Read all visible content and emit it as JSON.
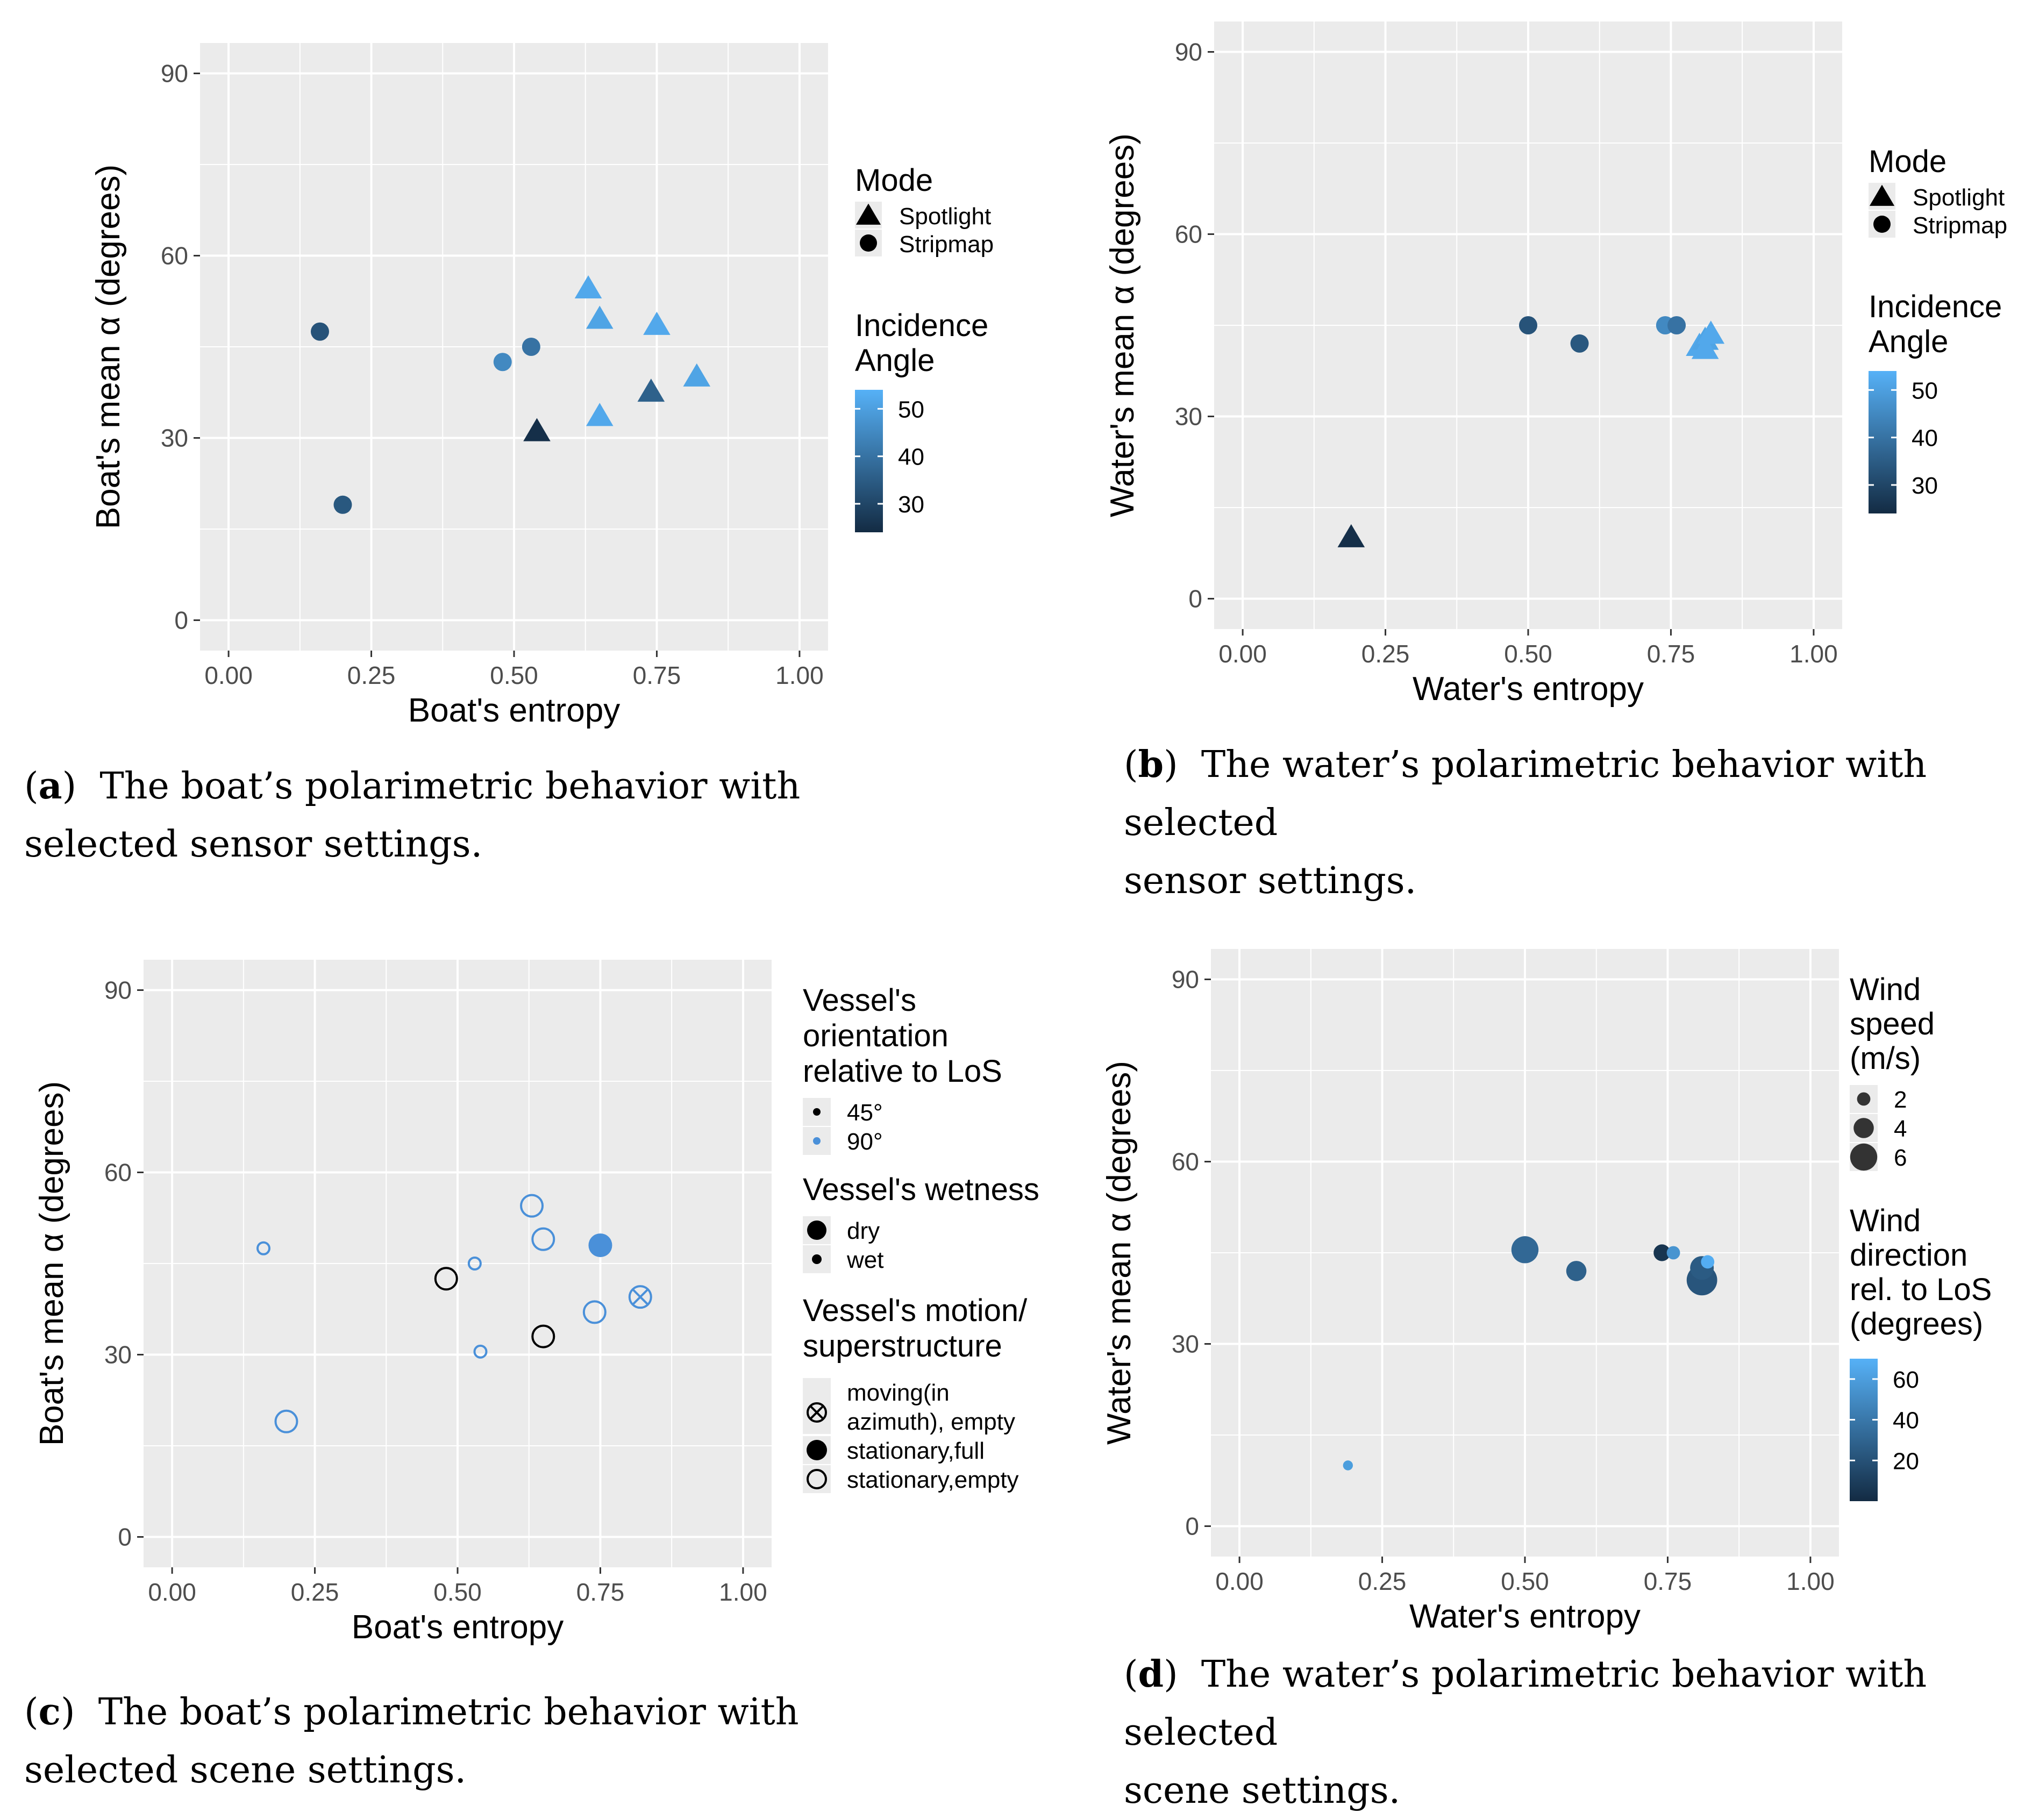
{
  "figure": {
    "captions": [
      {
        "letter": "a",
        "line1": "The boat’s polarimetric behavior with",
        "line2": "selected sensor settings."
      },
      {
        "letter": "b",
        "line1": "The water’s polarimetric behavior with selected",
        "line2": "sensor settings."
      },
      {
        "letter": "c",
        "line1": "The boat’s polarimetric behavior with",
        "line2": "selected scene settings."
      },
      {
        "letter": "d",
        "line1": "The water’s polarimetric behavior with selected",
        "line2": "scene settings."
      }
    ]
  },
  "colors": {
    "panel_bg": "#EBEBEB",
    "grid": "#FFFFFF",
    "grad_low": "#132B43",
    "grad_high": "#56B1F7",
    "black": "#000000",
    "blue": "#4A90D9"
  },
  "chart_data": [
    {
      "id": "a",
      "type": "scatter",
      "xlabel": "Boat's entropy",
      "ylabel": "Boat's mean α (degrees)",
      "xlim": [
        -0.05,
        1.05
      ],
      "ylim": [
        -5,
        95
      ],
      "xticks": [
        "0.00",
        "0.25",
        "0.50",
        "0.75",
        "1.00"
      ],
      "yticks": [
        "0",
        "30",
        "60",
        "90"
      ],
      "xtick_values": [
        0,
        0.25,
        0.5,
        0.75,
        1
      ],
      "ytick_values": [
        0,
        30,
        60,
        90
      ],
      "color_by": "incidence",
      "points": [
        {
          "x": 0.16,
          "y": 47.5,
          "shape": "circle",
          "incidence": 33
        },
        {
          "x": 0.2,
          "y": 19.0,
          "shape": "circle",
          "incidence": 34
        },
        {
          "x": 0.48,
          "y": 42.5,
          "shape": "circle",
          "incidence": 45
        },
        {
          "x": 0.53,
          "y": 45.0,
          "shape": "circle",
          "incidence": 40
        },
        {
          "x": 0.54,
          "y": 31.0,
          "shape": "triangle",
          "incidence": 25
        },
        {
          "x": 0.63,
          "y": 54.5,
          "shape": "triangle",
          "incidence": 52
        },
        {
          "x": 0.65,
          "y": 49.5,
          "shape": "triangle",
          "incidence": 51
        },
        {
          "x": 0.65,
          "y": 33.5,
          "shape": "triangle",
          "incidence": 52
        },
        {
          "x": 0.74,
          "y": 37.5,
          "shape": "triangle",
          "incidence": 36
        },
        {
          "x": 0.75,
          "y": 48.5,
          "shape": "triangle",
          "incidence": 52
        },
        {
          "x": 0.82,
          "y": 40.0,
          "shape": "triangle",
          "incidence": 51
        }
      ],
      "legend": {
        "mode_title": "Mode",
        "mode_items": [
          "Spotlight",
          "Stripmap"
        ],
        "color_title_1": "Incidence",
        "color_title_2": "Angle",
        "color_ticks": [
          "50",
          "40",
          "30"
        ],
        "color_tick_values": [
          50,
          40,
          30
        ],
        "color_range": [
          24,
          54
        ]
      }
    },
    {
      "id": "b",
      "type": "scatter",
      "xlabel": "Water's entropy",
      "ylabel": "Water's mean α (degrees)",
      "xlim": [
        -0.05,
        1.05
      ],
      "ylim": [
        -5,
        95
      ],
      "xticks": [
        "0.00",
        "0.25",
        "0.50",
        "0.75",
        "1.00"
      ],
      "yticks": [
        "0",
        "30",
        "60",
        "90"
      ],
      "xtick_values": [
        0,
        0.25,
        0.5,
        0.75,
        1
      ],
      "ytick_values": [
        0,
        30,
        60,
        90
      ],
      "color_by": "incidence",
      "points": [
        {
          "x": 0.19,
          "y": 10.0,
          "shape": "triangle",
          "incidence": 25
        },
        {
          "x": 0.5,
          "y": 45.0,
          "shape": "circle",
          "incidence": 33
        },
        {
          "x": 0.59,
          "y": 42.0,
          "shape": "circle",
          "incidence": 34
        },
        {
          "x": 0.74,
          "y": 45.0,
          "shape": "circle",
          "incidence": 45
        },
        {
          "x": 0.76,
          "y": 45.0,
          "shape": "circle",
          "incidence": 40
        },
        {
          "x": 0.8,
          "y": 41.5,
          "shape": "triangle",
          "incidence": 52
        },
        {
          "x": 0.81,
          "y": 42.5,
          "shape": "triangle",
          "incidence": 51
        },
        {
          "x": 0.81,
          "y": 41.0,
          "shape": "triangle",
          "incidence": 52
        },
        {
          "x": 0.82,
          "y": 43.5,
          "shape": "triangle",
          "incidence": 52
        }
      ],
      "legend": {
        "mode_title": "Mode",
        "mode_items": [
          "Spotlight",
          "Stripmap"
        ],
        "color_title_1": "Incidence",
        "color_title_2": "Angle",
        "color_ticks": [
          "50",
          "40",
          "30"
        ],
        "color_tick_values": [
          50,
          40,
          30
        ],
        "color_range": [
          24,
          54
        ]
      }
    },
    {
      "id": "c",
      "type": "scatter",
      "xlabel": "Boat's entropy",
      "ylabel": "Boat's mean α (degrees)",
      "xlim": [
        -0.05,
        1.05
      ],
      "ylim": [
        -5,
        95
      ],
      "xticks": [
        "0.00",
        "0.25",
        "0.50",
        "0.75",
        "1.00"
      ],
      "yticks": [
        "0",
        "30",
        "60",
        "90"
      ],
      "xtick_values": [
        0,
        0.25,
        0.5,
        0.75,
        1
      ],
      "ytick_values": [
        0,
        30,
        60,
        90
      ],
      "points": [
        {
          "x": 0.16,
          "y": 47.5,
          "orientation": "90°",
          "wetness": "wet",
          "motion": "stationary,empty"
        },
        {
          "x": 0.2,
          "y": 19.0,
          "orientation": "90°",
          "wetness": "dry",
          "motion": "stationary,empty"
        },
        {
          "x": 0.48,
          "y": 42.5,
          "orientation": "45°",
          "wetness": "dry",
          "motion": "stationary,empty"
        },
        {
          "x": 0.53,
          "y": 45.0,
          "orientation": "90°",
          "wetness": "wet",
          "motion": "stationary,empty"
        },
        {
          "x": 0.54,
          "y": 30.5,
          "orientation": "90°",
          "wetness": "wet",
          "motion": "stationary,empty"
        },
        {
          "x": 0.63,
          "y": 54.5,
          "orientation": "90°",
          "wetness": "dry",
          "motion": "stationary,empty"
        },
        {
          "x": 0.65,
          "y": 49.0,
          "orientation": "90°",
          "wetness": "dry",
          "motion": "stationary,empty"
        },
        {
          "x": 0.65,
          "y": 33.0,
          "orientation": "45°",
          "wetness": "dry",
          "motion": "stationary,empty"
        },
        {
          "x": 0.74,
          "y": 37.0,
          "orientation": "90°",
          "wetness": "dry",
          "motion": "stationary,empty"
        },
        {
          "x": 0.75,
          "y": 48.0,
          "orientation": "90°",
          "wetness": "dry",
          "motion": "stationary,full"
        },
        {
          "x": 0.82,
          "y": 39.5,
          "orientation": "90°",
          "wetness": "dry",
          "motion": "moving(in azimuth), empty"
        }
      ],
      "legend": {
        "orient_title": [
          "Vessel's",
          "orientation",
          "relative to LoS"
        ],
        "orient_items": [
          "45°",
          "90°"
        ],
        "wet_title": "Vessel's wetness",
        "wet_items": [
          "dry",
          "wet"
        ],
        "motion_title": [
          "Vessel's motion/",
          "superstructure"
        ],
        "motion_items": [
          [
            "moving(in",
            "azimuth), empty"
          ],
          [
            "stationary,full"
          ],
          [
            "stationary,empty"
          ]
        ]
      }
    },
    {
      "id": "d",
      "type": "scatter",
      "xlabel": "Water's entropy",
      "ylabel": "Water's mean α (degrees)",
      "xlim": [
        -0.05,
        1.05
      ],
      "ylim": [
        -5,
        95
      ],
      "xticks": [
        "0.00",
        "0.25",
        "0.50",
        "0.75",
        "1.00"
      ],
      "yticks": [
        "0",
        "30",
        "60",
        "90"
      ],
      "xtick_values": [
        0,
        0.25,
        0.5,
        0.75,
        1
      ],
      "ytick_values": [
        0,
        30,
        60,
        90
      ],
      "color_by": "wind_dir",
      "points": [
        {
          "x": 0.19,
          "y": 10.0,
          "wind_speed": 1.0,
          "wind_dir": 60
        },
        {
          "x": 0.5,
          "y": 45.5,
          "wind_speed": 6.0,
          "wind_dir": 32
        },
        {
          "x": 0.59,
          "y": 42.0,
          "wind_speed": 4.0,
          "wind_dir": 28
        },
        {
          "x": 0.74,
          "y": 45.0,
          "wind_speed": 3.0,
          "wind_dir": 5
        },
        {
          "x": 0.76,
          "y": 45.0,
          "wind_speed": 2.0,
          "wind_dir": 55
        },
        {
          "x": 0.81,
          "y": 42.5,
          "wind_speed": 5.0,
          "wind_dir": 25
        },
        {
          "x": 0.81,
          "y": 40.5,
          "wind_speed": 7.0,
          "wind_dir": 22
        },
        {
          "x": 0.82,
          "y": 43.5,
          "wind_speed": 2.0,
          "wind_dir": 68
        }
      ],
      "legend": {
        "speed_title": [
          "Wind",
          "speed",
          "(m/s)"
        ],
        "speed_items": [
          "2",
          "4",
          "6"
        ],
        "speed_values": [
          2,
          4,
          6
        ],
        "dir_title": [
          "Wind",
          "direction",
          "rel. to LoS",
          "(degrees)"
        ],
        "dir_ticks": [
          "60",
          "40",
          "20"
        ],
        "dir_tick_values": [
          60,
          40,
          20
        ],
        "dir_range": [
          0,
          70
        ]
      }
    }
  ]
}
